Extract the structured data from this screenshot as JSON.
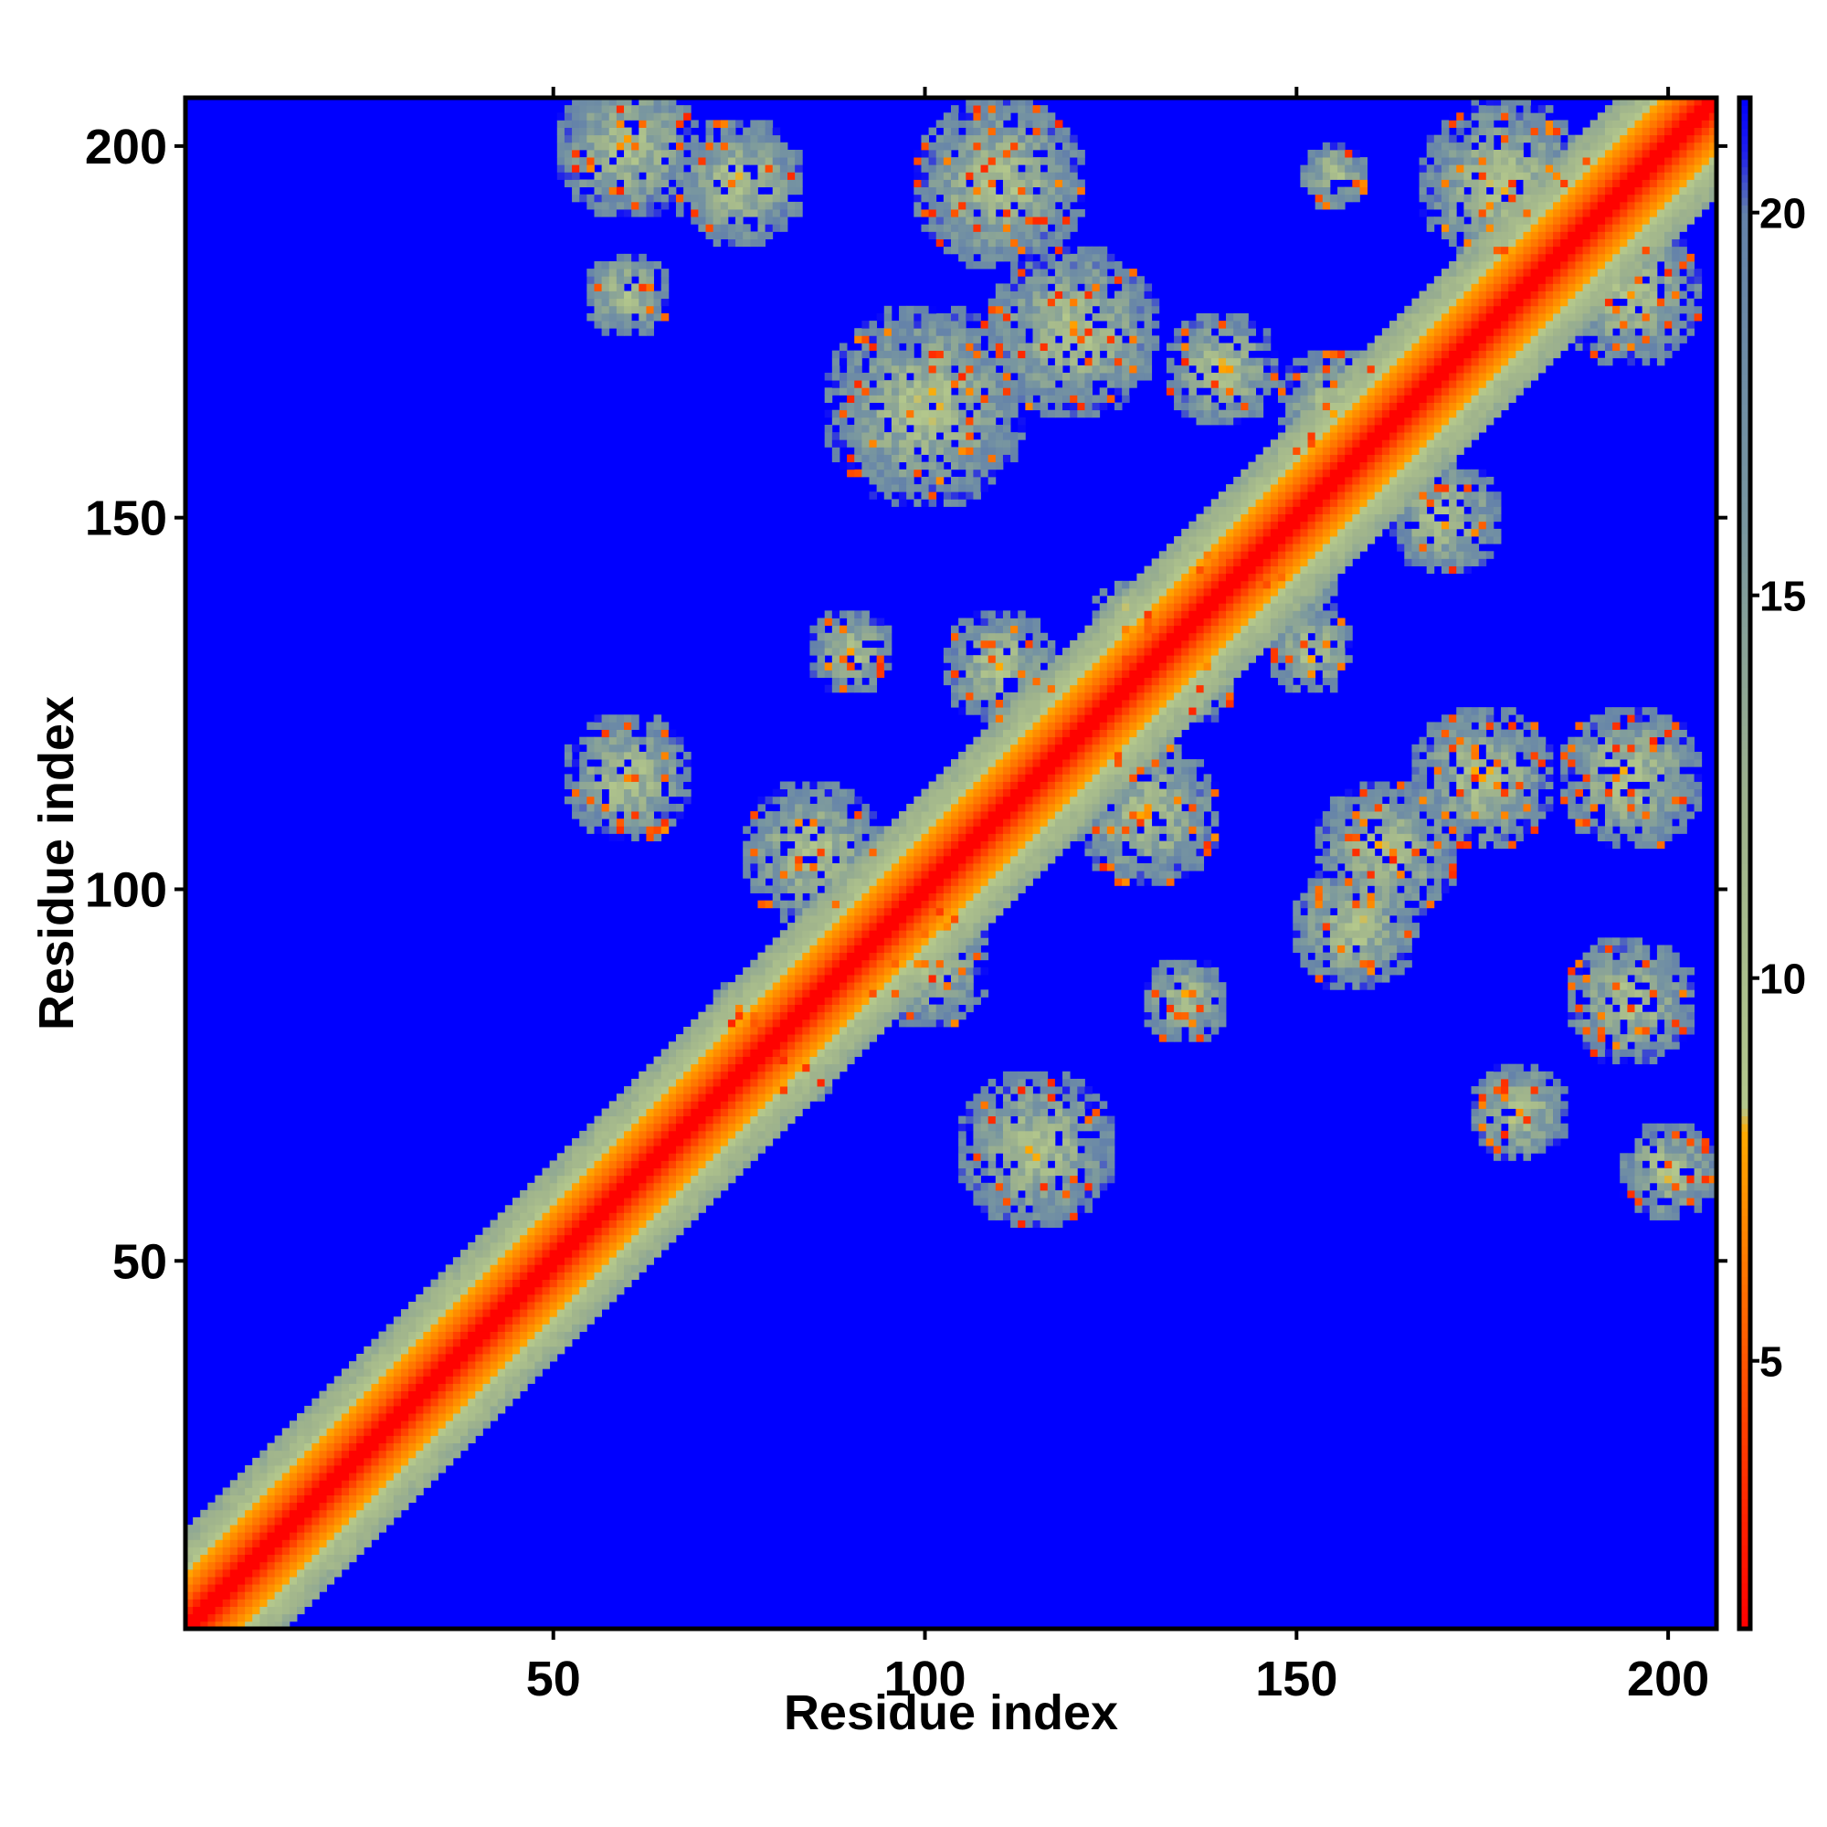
{
  "chart_data": {
    "type": "heatmap",
    "title": "",
    "xlabel": "Residue index",
    "ylabel": "Residue index",
    "n_residues": 206,
    "xlim": [
      1,
      206
    ],
    "ylim": [
      1,
      206
    ],
    "x_ticks": [
      50,
      100,
      150,
      200
    ],
    "y_ticks": [
      50,
      100,
      150,
      200
    ],
    "colorbar": {
      "ticks": [
        5,
        10,
        15,
        20
      ],
      "range": [
        1.5,
        21.5
      ],
      "position": "right",
      "stops": [
        {
          "value": 1.5,
          "color": "#ff0000"
        },
        {
          "value": 5.0,
          "color": "#ff5500"
        },
        {
          "value": 8.0,
          "color": "#ffaa00"
        },
        {
          "value": 8.3,
          "color": "#b4c88c"
        },
        {
          "value": 12.0,
          "color": "#a0b48c"
        },
        {
          "value": 16.0,
          "color": "#7896a0"
        },
        {
          "value": 20.0,
          "color": "#6482aa"
        },
        {
          "value": 20.8,
          "color": "#1e1eee"
        },
        {
          "value": 21.5,
          "color": "#0000ff"
        }
      ]
    },
    "background_color": "#0000ff",
    "diagonal_band": {
      "core": 1.6,
      "mid": 5.5,
      "outer": 8.5,
      "fringe": 12.5
    },
    "contact_blobs": [
      {
        "x": 75,
        "y": 84,
        "r": 4
      },
      {
        "x": 84,
        "y": 75,
        "r": 4
      },
      {
        "x": 80,
        "y": 80,
        "r": 6
      },
      {
        "x": 132,
        "y": 132,
        "r": 6
      },
      {
        "x": 127,
        "y": 137,
        "r": 5
      },
      {
        "x": 137,
        "y": 127,
        "r": 5
      },
      {
        "x": 138,
        "y": 145,
        "r": 4
      },
      {
        "x": 152,
        "y": 132,
        "r": 6
      },
      {
        "x": 150,
        "y": 140,
        "r": 6
      },
      {
        "x": 60,
        "y": 200,
        "r": 10
      },
      {
        "x": 75,
        "y": 195,
        "r": 9
      },
      {
        "x": 110,
        "y": 195,
        "r": 12
      },
      {
        "x": 155,
        "y": 196,
        "r": 5
      },
      {
        "x": 178,
        "y": 195,
        "r": 12
      },
      {
        "x": 195,
        "y": 180,
        "r": 10
      },
      {
        "x": 60,
        "y": 180,
        "r": 6
      },
      {
        "x": 100,
        "y": 165,
        "r": 14
      },
      {
        "x": 120,
        "y": 175,
        "r": 12
      },
      {
        "x": 140,
        "y": 170,
        "r": 8
      },
      {
        "x": 155,
        "y": 165,
        "r": 8
      },
      {
        "x": 170,
        "y": 150,
        "r": 8
      },
      {
        "x": 110,
        "y": 130,
        "r": 8
      },
      {
        "x": 90,
        "y": 132,
        "r": 6
      },
      {
        "x": 60,
        "y": 115,
        "r": 9
      },
      {
        "x": 85,
        "y": 105,
        "r": 10
      },
      {
        "x": 130,
        "y": 110,
        "r": 10
      },
      {
        "x": 162,
        "y": 105,
        "r": 10
      },
      {
        "x": 175,
        "y": 115,
        "r": 10
      },
      {
        "x": 195,
        "y": 115,
        "r": 10
      },
      {
        "x": 100,
        "y": 90,
        "r": 9
      },
      {
        "x": 115,
        "y": 65,
        "r": 11
      },
      {
        "x": 135,
        "y": 85,
        "r": 6
      },
      {
        "x": 158,
        "y": 95,
        "r": 9
      },
      {
        "x": 180,
        "y": 70,
        "r": 7
      },
      {
        "x": 195,
        "y": 85,
        "r": 9
      },
      {
        "x": 200,
        "y": 62,
        "r": 7
      }
    ]
  }
}
